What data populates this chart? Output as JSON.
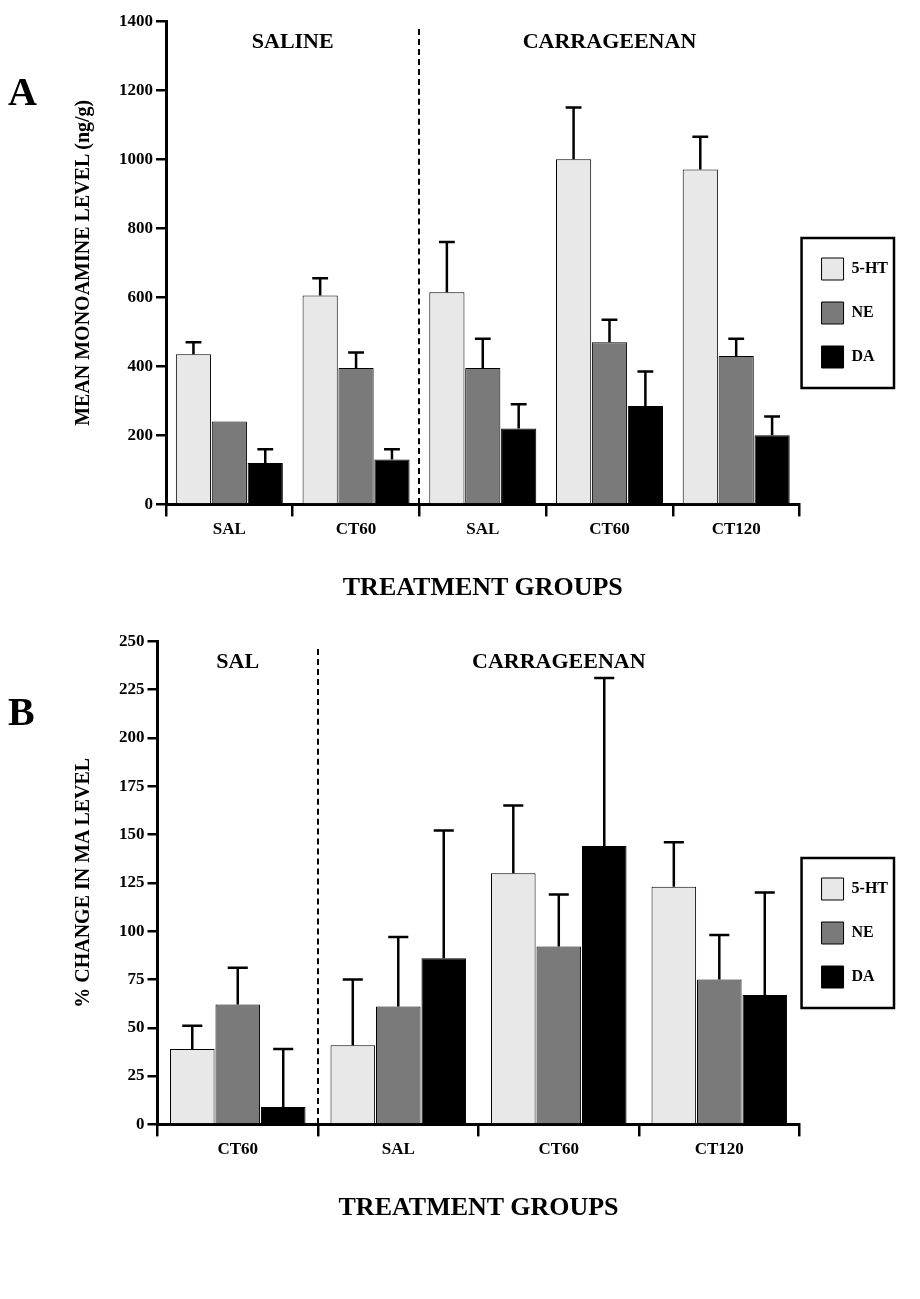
{
  "chart_data": [
    {
      "type": "bar",
      "title": "A",
      "xlabel": "TREATMENT GROUPS",
      "ylabel": "MEAN MONOAMINE LEVEL (ng/g)",
      "categories": [
        "SAL",
        "CT60",
        "SAL",
        "CT60",
        "CT120"
      ],
      "series": [
        {
          "name": "5-HT",
          "color": "#e8e8e8",
          "values": [
            435,
            605,
            615,
            1000,
            970
          ],
          "errors": [
            [
              435,
              470
            ],
            [
              605,
              655
            ],
            [
              615,
              760
            ],
            [
              1000,
              1150
            ],
            [
              970,
              1065
            ]
          ]
        },
        {
          "name": "NE",
          "color": "#7a7a7a",
          "values": [
            240,
            395,
            395,
            470,
            430
          ],
          "errors": [
            null,
            [
              395,
              440
            ],
            [
              395,
              480
            ],
            [
              470,
              535
            ],
            [
              430,
              480
            ]
          ]
        },
        {
          "name": "DA",
          "color": "#000000",
          "values": [
            120,
            130,
            220,
            285,
            200
          ],
          "errors": [
            [
              120,
              160
            ],
            [
              130,
              160
            ],
            [
              220,
              290
            ],
            [
              285,
              385
            ],
            [
              200,
              255
            ]
          ]
        }
      ],
      "ylim": [
        0,
        1400
      ],
      "yticks": [
        0,
        200,
        400,
        600,
        800,
        1000,
        1200,
        1400
      ],
      "annotations": [
        "SALINE",
        "CARRAGEENAN"
      ],
      "grid": false,
      "legend": "right"
    },
    {
      "type": "bar",
      "title": "B",
      "xlabel": "TREATMENT GROUPS",
      "ylabel": "% CHANGE IN MA LEVEL",
      "categories": [
        "CT60",
        "SAL",
        "CT60",
        "CT120"
      ],
      "series": [
        {
          "name": "5-HT",
          "color": "#e8e8e8",
          "values": [
            39,
            41,
            130,
            123
          ],
          "errors": [
            [
              39,
              51
            ],
            [
              41,
              75
            ],
            [
              130,
              165
            ],
            [
              123,
              146
            ]
          ]
        },
        {
          "name": "NE",
          "color": "#7a7a7a",
          "values": [
            62,
            61,
            92,
            75
          ],
          "errors": [
            [
              62,
              81
            ],
            [
              61,
              97
            ],
            [
              92,
              119
            ],
            [
              75,
              98
            ]
          ]
        },
        {
          "name": "DA",
          "color": "#000000",
          "values": [
            9,
            86,
            144,
            67
          ],
          "errors": [
            [
              9,
              39
            ],
            [
              86,
              152
            ],
            [
              144,
              231
            ],
            [
              67,
              120
            ]
          ]
        }
      ],
      "ylim": [
        0,
        250
      ],
      "yticks": [
        0,
        25,
        50,
        75,
        100,
        125,
        150,
        175,
        200,
        225,
        250
      ],
      "annotations": [
        "SAL",
        "CARRAGEENAN"
      ],
      "grid": false,
      "legend": "right"
    }
  ]
}
